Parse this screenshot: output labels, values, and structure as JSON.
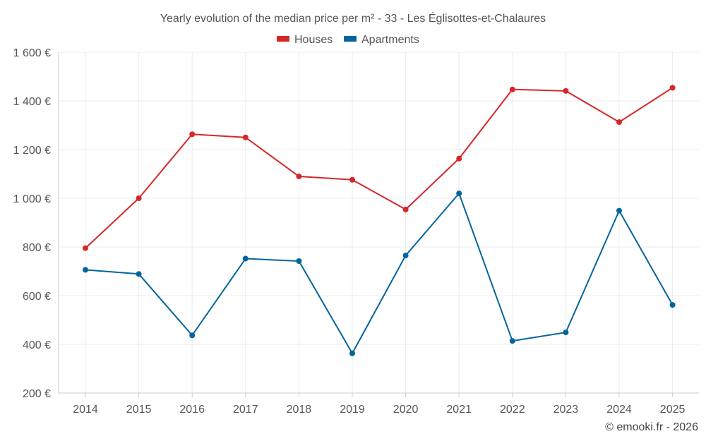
{
  "chart_data": {
    "type": "line",
    "title": "Yearly evolution of the median price per m² - 33 - Les Églisottes-et-Chalaures",
    "categories": [
      "2014",
      "2015",
      "2016",
      "2017",
      "2018",
      "2019",
      "2020",
      "2021",
      "2022",
      "2023",
      "2024",
      "2025"
    ],
    "series": [
      {
        "name": "Houses",
        "color": "#d62728",
        "values": [
          795,
          1000,
          1263,
          1250,
          1090,
          1076,
          954,
          1163,
          1447,
          1441,
          1313,
          1454
        ]
      },
      {
        "name": "Apartments",
        "color": "#04659c",
        "values": [
          706,
          689,
          437,
          752,
          742,
          363,
          765,
          1020,
          414,
          449,
          949,
          562
        ]
      }
    ],
    "ylim": [
      200,
      1600
    ],
    "yticks": [
      200,
      400,
      600,
      800,
      1000,
      1200,
      1400,
      1600
    ],
    "ytick_labels": [
      "200 €",
      "400 €",
      "600 €",
      "800 €",
      "1 000 €",
      "1 200 €",
      "1 400 €",
      "1 600 €"
    ],
    "xlabel": "",
    "ylabel": "",
    "grid": true,
    "legend_position": "top-center"
  },
  "credit": "© emooki.fr - 2026"
}
